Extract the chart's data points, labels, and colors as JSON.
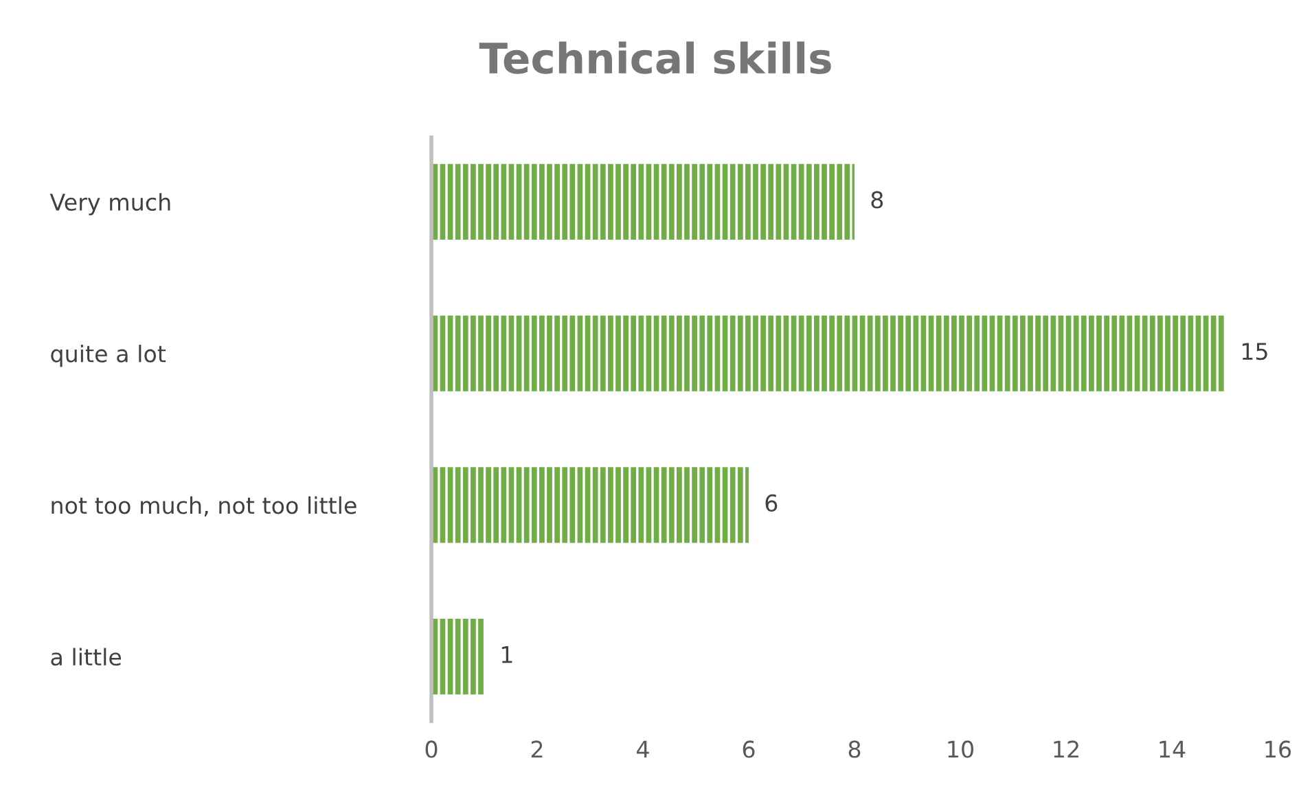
{
  "chart_data": {
    "type": "bar",
    "orientation": "horizontal",
    "title": "Technical skills",
    "categories": [
      "Very much",
      "quite a lot",
      "not too much, not too little",
      "a little"
    ],
    "values": [
      8,
      15,
      6,
      1
    ],
    "color": "#70ad47",
    "xlim": [
      0,
      16
    ],
    "xticks": [
      0,
      2,
      4,
      6,
      8,
      10,
      12,
      14,
      16
    ],
    "grid": false,
    "data_labels": true
  }
}
